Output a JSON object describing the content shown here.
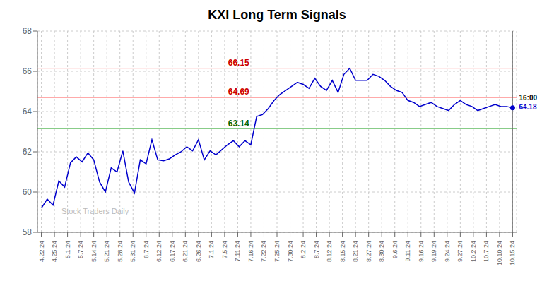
{
  "chart_data": {
    "type": "line",
    "title": "KXI Long Term Signals",
    "color": "#0000cc",
    "grid": true,
    "x": [
      0,
      0.444444,
      0.888889,
      1.333333,
      1.777778,
      2.222222,
      2.666667,
      3.111111,
      3.555556,
      4,
      4.444444,
      4.888889,
      5.333333,
      5.777778,
      6.222222,
      6.666667,
      7.111111,
      7.555556,
      8,
      8.444444,
      8.888889,
      9.333333,
      9.777778,
      10.222222,
      10.666667,
      11.111111,
      11.555556,
      12,
      12.444444,
      12.888889,
      13.333333,
      13.777778,
      14.222222,
      14.666667,
      15.111111,
      15.555556,
      16,
      16.444444,
      16.888889,
      17.333333,
      17.777778,
      18.222222,
      18.666667,
      19.111111,
      19.555556,
      20,
      20.444444,
      20.888889,
      21.333333,
      21.777778,
      22.222222,
      22.666667,
      23.111111,
      23.555556,
      24,
      24.444444,
      24.888889,
      25.333333,
      25.777778,
      26.222222,
      26.666667,
      27.111111,
      27.555556,
      28,
      28.444444,
      28.888889,
      29.333333,
      29.777778,
      30.222222,
      30.666667,
      31.111111,
      31.555556,
      32,
      32.444444,
      32.888889,
      33.333333,
      33.777778,
      34.222222,
      34.666667,
      35.111111,
      35.555556,
      36
    ],
    "values": [
      59.2,
      59.65,
      59.35,
      60.55,
      60.25,
      61.45,
      61.75,
      61.5,
      61.95,
      61.6,
      60.5,
      60.0,
      61.2,
      61.0,
      62.05,
      60.5,
      59.95,
      61.6,
      61.4,
      62.6,
      61.6,
      61.55,
      61.65,
      61.85,
      62.0,
      62.25,
      62.05,
      62.6,
      61.6,
      62.05,
      61.85,
      62.1,
      62.35,
      62.55,
      62.25,
      62.55,
      62.35,
      63.75,
      63.85,
      64.15,
      64.55,
      64.85,
      65.05,
      65.25,
      65.45,
      65.35,
      65.15,
      65.65,
      65.25,
      65.05,
      65.55,
      64.95,
      65.85,
      66.15,
      65.55,
      65.55,
      65.55,
      65.85,
      65.75,
      65.55,
      65.25,
      65.05,
      64.95,
      64.55,
      64.45,
      64.25,
      64.35,
      64.45,
      64.25,
      64.15,
      64.05,
      64.35,
      64.55,
      64.35,
      64.25,
      64.05,
      64.15,
      64.25,
      64.35,
      64.25,
      64.25,
      64.18
    ],
    "xlim": [
      -0.3,
      36.3
    ],
    "xticks": [
      {
        "value": 0,
        "label": "4.22.24"
      },
      {
        "value": 1,
        "label": "4.25.24"
      },
      {
        "value": 2,
        "label": "5.1.24"
      },
      {
        "value": 3,
        "label": "5.7.24"
      },
      {
        "value": 4,
        "label": "5.14.24"
      },
      {
        "value": 5,
        "label": "5.21.24"
      },
      {
        "value": 6,
        "label": "5.28.24"
      },
      {
        "value": 7,
        "label": "5.31.24"
      },
      {
        "value": 8,
        "label": "6.7.24"
      },
      {
        "value": 9,
        "label": "6.12.24"
      },
      {
        "value": 10,
        "label": "6.17.24"
      },
      {
        "value": 11,
        "label": "6.21.24"
      },
      {
        "value": 12,
        "label": "6.26.24"
      },
      {
        "value": 13,
        "label": "7.1.24"
      },
      {
        "value": 14,
        "label": "7.5.24"
      },
      {
        "value": 15,
        "label": "7.11.24"
      },
      {
        "value": 16,
        "label": "7.16.24"
      },
      {
        "value": 17,
        "label": "7.22.24"
      },
      {
        "value": 18,
        "label": "7.25.24"
      },
      {
        "value": 19,
        "label": "7.30.24"
      },
      {
        "value": 20,
        "label": "8.2.24"
      },
      {
        "value": 21,
        "label": "8.7.24"
      },
      {
        "value": 22,
        "label": "8.12.24"
      },
      {
        "value": 23,
        "label": "8.15.24"
      },
      {
        "value": 24,
        "label": "8.21.24"
      },
      {
        "value": 25,
        "label": "8.27.24"
      },
      {
        "value": 26,
        "label": "8.30.24"
      },
      {
        "value": 27,
        "label": "9.6.24"
      },
      {
        "value": 28,
        "label": "9.11.24"
      },
      {
        "value": 29,
        "label": "9.16.24"
      },
      {
        "value": 30,
        "label": "9.19.24"
      },
      {
        "value": 31,
        "label": "9.24.24"
      },
      {
        "value": 32,
        "label": "9.27.24"
      },
      {
        "value": 33,
        "label": "10.2.24"
      },
      {
        "value": 34,
        "label": "10.7.24"
      },
      {
        "value": 35,
        "label": "10.10.24"
      },
      {
        "value": 36,
        "label": "10.15.24"
      }
    ],
    "ylim": [
      58,
      68
    ],
    "yticks": [
      58,
      60,
      62,
      64,
      66,
      68
    ],
    "hlines": [
      {
        "y": 66.15,
        "label": "66.15",
        "color": "#ffaaaa",
        "label_color": "#cc0000"
      },
      {
        "y": 64.69,
        "label": "64.69",
        "color": "#ffaaaa",
        "label_color": "#cc0000"
      },
      {
        "y": 63.14,
        "label": "63.14",
        "color": "#88cc88",
        "label_color": "#006600"
      }
    ],
    "last_point": {
      "x": 36,
      "y": 64.18,
      "vline_color": "#666666",
      "time_label": "16:00",
      "time_color": "#000000",
      "value_label": "64.18",
      "value_color": "#0000cc"
    },
    "watermark": {
      "text": "Stock Traders Daily",
      "color": "#bbbbbb"
    }
  }
}
